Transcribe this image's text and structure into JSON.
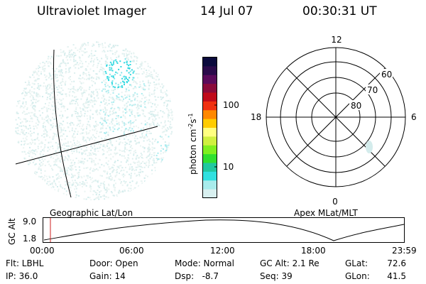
{
  "header": {
    "title": "Ultraviolet Imager",
    "date": "14 Jul 07",
    "time": "00:30:31 UT"
  },
  "colorbar": {
    "label_main": "photon cm",
    "label_exp1": "-2",
    "label_mid": "s",
    "label_exp2": "-1",
    "ticks": [
      "100",
      "10"
    ],
    "colors": [
      "#0a0a3c",
      "#2a0a4a",
      "#5a0a5a",
      "#8a0a3a",
      "#c00a1a",
      "#f03010",
      "#ff8800",
      "#ffcc00",
      "#ffff80",
      "#d0f040",
      "#80f020",
      "#30e030",
      "#20c8a0",
      "#30e0e0",
      "#a8ecec",
      "#d8f0f0"
    ]
  },
  "polar": {
    "mlt_labels": [
      "12",
      "18",
      "6",
      "0"
    ],
    "lat_labels": [
      "60",
      "70",
      "80"
    ]
  },
  "timeline": {
    "ylabel": "GC Alt",
    "yticks": [
      "9.0",
      "1.8"
    ],
    "left_caption": "Geographic Lat/Lon",
    "right_caption": "Apex MLat/MLT",
    "xticks": [
      "00:00",
      "06:00",
      "12:00",
      "18:00",
      "23:59"
    ],
    "marker_color": "#cc2222"
  },
  "footer": {
    "col1": [
      "Flt: LBHL",
      "IP: 36.0"
    ],
    "col2": [
      "Door: Open",
      "Gain: 14"
    ],
    "col3": [
      "Mode: Normal",
      "Dsp:   -8.7"
    ],
    "col4": [
      "GC Alt: 2.1 Re",
      "Seq: 39"
    ],
    "col5_labels": [
      "GLat:",
      "GLon:"
    ],
    "col5_values": [
      "72.6",
      "41.5"
    ]
  }
}
